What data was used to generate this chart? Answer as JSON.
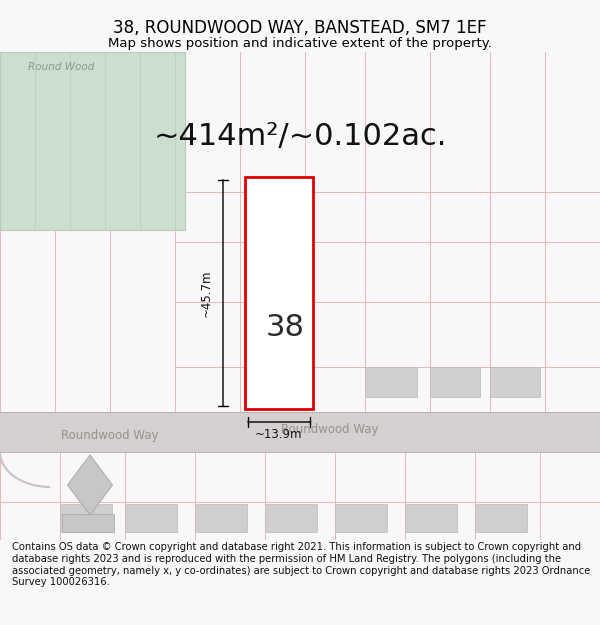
{
  "title": "38, ROUNDWOOD WAY, BANSTEAD, SM7 1EF",
  "subtitle": "Map shows position and indicative extent of the property.",
  "area_text": "~414m²/~0.102ac.",
  "label_number": "38",
  "dim_height": "~45.7m",
  "dim_width": "~13.9m",
  "street_name_road": "Roundwood Way",
  "street_name_left": "Roundwood Way",
  "wood_label": "Round Wood",
  "footer": "Contains OS data © Crown copyright and database right 2021. This information is subject to Crown copyright and database rights 2023 and is reproduced with the permission of HM Land Registry. The polygons (including the associated geometry, namely x, y co-ordinates) are subject to Crown copyright and database rights 2023 Ordnance Survey 100026316.",
  "bg_color": "#f9f7f7",
  "map_bg": "#faf8f8",
  "road_color": "#d4d0d0",
  "plot_line_color": "#e00000",
  "building_color": "#d0cece",
  "green_area_color": "#ccdece",
  "green_border_color": "#b8ccb8",
  "fence_color": "#e8b8b8",
  "title_fontsize": 12,
  "subtitle_fontsize": 9.5,
  "footer_fontsize": 7.2,
  "area_fontsize": 22,
  "label_fontsize": 22
}
